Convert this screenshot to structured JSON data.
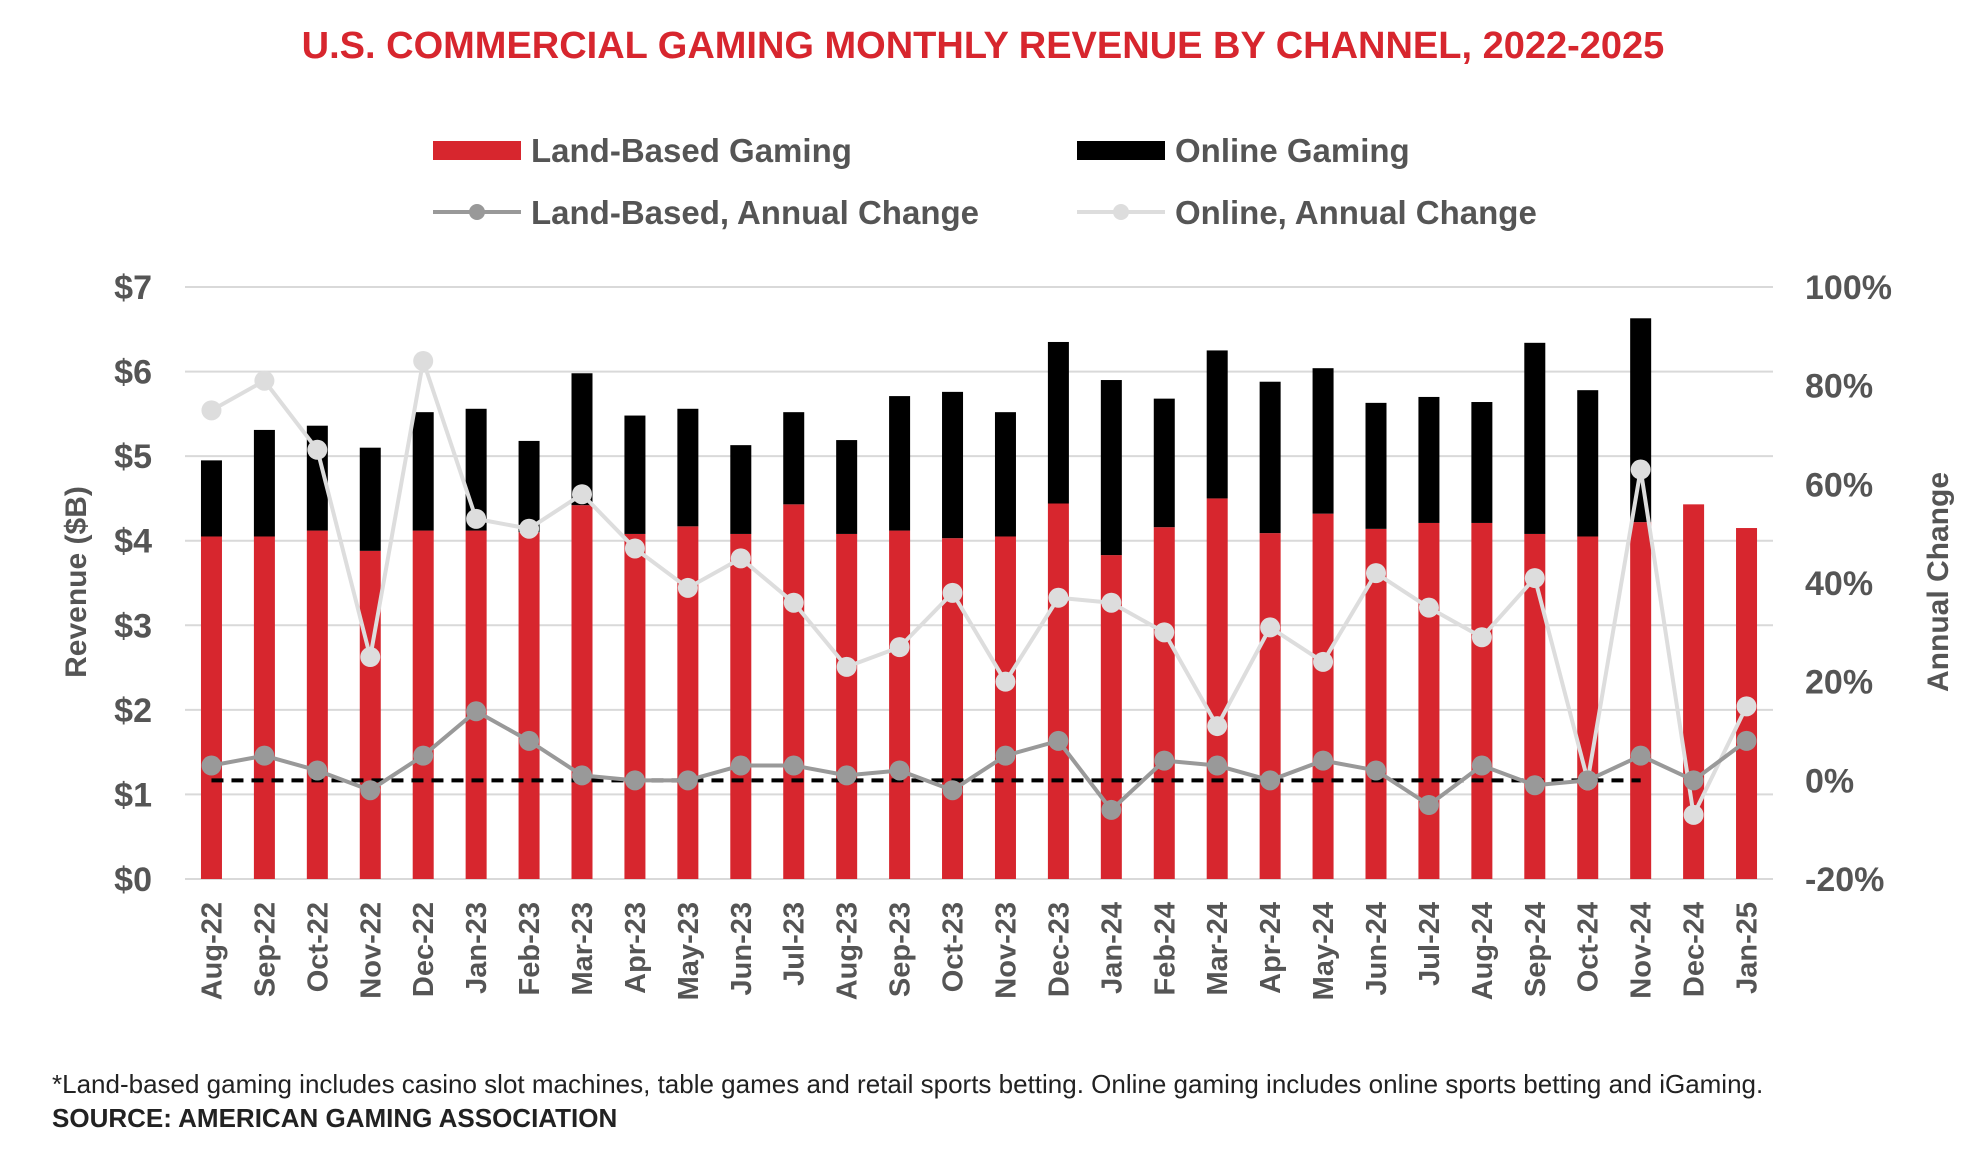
{
  "chart_data": {
    "type": "bar",
    "stacked": true,
    "title": "U.S. COMMERCIAL GAMING MONTHLY REVENUE BY CHANNEL, 2022-2025",
    "categories": [
      "Aug-22",
      "Sep-22",
      "Oct-22",
      "Nov-22",
      "Dec-22",
      "Jan-23",
      "Feb-23",
      "Mar-23",
      "Apr-23",
      "May-23",
      "Jun-23",
      "Jul-23",
      "Aug-23",
      "Sep-23",
      "Oct-23",
      "Nov-23",
      "Dec-23",
      "Jan-24",
      "Feb-24",
      "Mar-24",
      "Apr-24",
      "May-24",
      "Jun-24",
      "Jul-24",
      "Aug-24",
      "Sep-24",
      "Oct-24",
      "Nov-24",
      "Dec-24",
      "Jan-25"
    ],
    "legend": {
      "land": "Land-Based Gaming",
      "online": "Online Gaming",
      "land_change": "Land-Based, Annual Change",
      "online_change": "Online, Annual Change"
    },
    "series": [
      {
        "name": "Land-Based Gaming",
        "axis": "left",
        "kind": "bar",
        "values": [
          4.05,
          4.05,
          4.12,
          3.88,
          4.12,
          4.12,
          4.1,
          4.42,
          4.08,
          4.17,
          4.08,
          4.43,
          4.08,
          4.12,
          4.03,
          4.05,
          4.44,
          3.83,
          4.16,
          4.5,
          4.09,
          4.32,
          4.14,
          4.21,
          4.21,
          4.08,
          4.05,
          4.22,
          4.43,
          4.15
        ]
      },
      {
        "name": "Online Gaming",
        "axis": "left",
        "kind": "bar",
        "values": [
          0.9,
          1.26,
          1.24,
          1.22,
          1.4,
          1.44,
          1.08,
          1.56,
          1.4,
          1.39,
          1.05,
          1.09,
          1.11,
          1.59,
          1.73,
          1.47,
          1.91,
          2.07,
          1.52,
          1.75,
          1.79,
          1.72,
          1.49,
          1.49,
          1.43,
          2.26,
          1.73,
          2.41,
          null,
          null
        ]
      },
      {
        "name": "Land-Based, Annual Change",
        "axis": "right",
        "kind": "line",
        "values": [
          3,
          5,
          2,
          -2,
          5,
          14,
          8,
          1,
          0,
          0,
          3,
          3,
          1,
          2,
          -2,
          5,
          8,
          -6,
          4,
          3,
          0,
          4,
          2,
          -5,
          3,
          -1,
          0,
          5,
          0,
          8
        ]
      },
      {
        "name": "Online, Annual Change",
        "axis": "right",
        "kind": "line",
        "values": [
          75,
          81,
          67,
          25,
          85,
          53,
          51,
          58,
          47,
          39,
          45,
          36,
          23,
          27,
          38,
          20,
          37,
          36,
          30,
          11,
          31,
          24,
          42,
          35,
          29,
          41,
          0,
          63,
          -7,
          15
        ]
      }
    ],
    "reference_line": {
      "axis": "right",
      "value": 0,
      "style": "dashed",
      "from": "Aug-22",
      "to": "Nov-24"
    },
    "left_axis": {
      "label": "Revenue ($B)",
      "ylim": [
        0,
        7
      ],
      "ticks": [
        "$0",
        "$1",
        "$2",
        "$3",
        "$4",
        "$5",
        "$6",
        "$7"
      ]
    },
    "right_axis": {
      "label": "Annual Change",
      "ylim": [
        -20,
        100
      ],
      "ticks": [
        "-20%",
        "0%",
        "20%",
        "40%",
        "60%",
        "80%",
        "100%"
      ]
    },
    "colors": {
      "land": "#d7262e",
      "online": "#000000",
      "land_change": "#999999",
      "online_change": "#dddddd",
      "grid": "#d9d9d9",
      "text": "#555555"
    }
  },
  "footnote": "*Land-based gaming includes casino slot machines, table games and retail sports betting. Online gaming includes online sports betting and iGaming.",
  "source": "SOURCE: AMERICAN GAMING ASSOCIATION"
}
